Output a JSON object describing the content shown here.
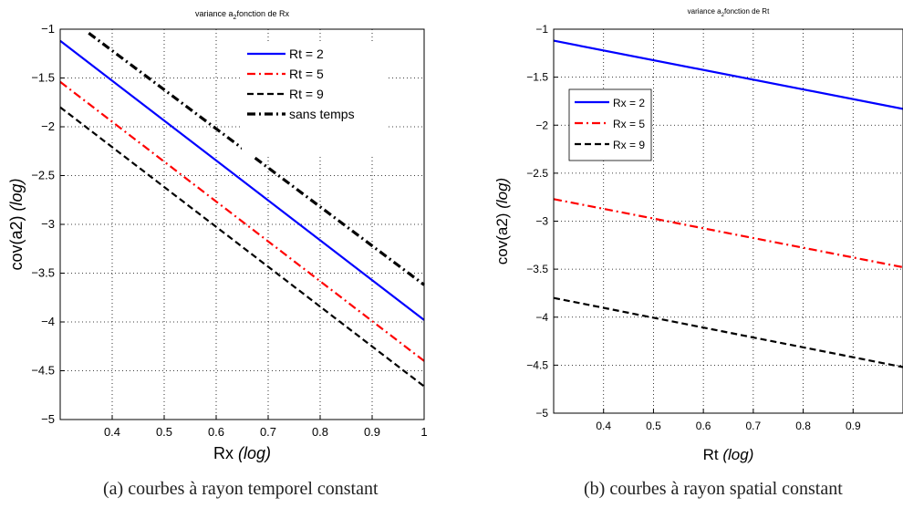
{
  "chart_data": [
    {
      "type": "line",
      "title": "variance a",
      "title_sub": "2",
      "title_rest": "fonction de Rx",
      "xlabel": "Rx",
      "xlabel_suffix": "(log)",
      "ylabel": "cov(a2)",
      "ylabel_suffix": "(log)",
      "xlim": [
        0.3,
        1
      ],
      "ylim": [
        -5,
        -1
      ],
      "xticks": [
        0.4,
        0.5,
        0.6,
        0.7,
        0.8,
        0.9,
        1
      ],
      "xtick_labels": [
        "0.4",
        "0.5",
        "0.6",
        "0.7",
        "0.8",
        "0.9",
        "1"
      ],
      "yticks": [
        -5,
        -4.5,
        -4,
        -3.5,
        -3,
        -2.5,
        -2,
        -1.5,
        -1
      ],
      "ytick_labels": [
        "−5",
        "−4.5",
        "−4",
        "−3.5",
        "−3",
        "−2.5",
        "−2",
        "−1.5",
        "−1"
      ],
      "grid": "dotted",
      "legend_position": "top-right",
      "series": [
        {
          "name": "Rt = 2",
          "color": "#0000ff",
          "style": "solid",
          "width": 2.2,
          "x": [
            0.3,
            1.0
          ],
          "y": [
            -1.12,
            -3.98
          ]
        },
        {
          "name": "Rt = 5",
          "color": "#ff0000",
          "style": "dashdot",
          "width": 2.2,
          "x": [
            0.3,
            1.0
          ],
          "y": [
            -1.54,
            -4.4
          ]
        },
        {
          "name": "Rt = 9",
          "color": "#000000",
          "style": "dashed",
          "width": 2.2,
          "x": [
            0.3,
            1.0
          ],
          "y": [
            -1.8,
            -4.66
          ]
        },
        {
          "name": "sans temps",
          "color": "#000000",
          "style": "dashdot",
          "width": 3.2,
          "x": [
            0.355,
            1.0
          ],
          "y": [
            -1.04,
            -3.62
          ]
        }
      ]
    },
    {
      "type": "line",
      "title": "variance a",
      "title_sub": "2",
      "title_rest": "fonction de Rt",
      "xlabel": "Rt",
      "xlabel_suffix": "(log)",
      "ylabel": "cov(a2)",
      "ylabel_suffix": "(log)",
      "xlim": [
        0.3,
        1
      ],
      "ylim": [
        -5,
        -1
      ],
      "xticks": [
        0.4,
        0.5,
        0.6,
        0.7,
        0.8,
        0.9
      ],
      "xtick_labels": [
        "0.4",
        "0.5",
        "0.6",
        "0.7",
        "0.8",
        "0.9"
      ],
      "yticks": [
        -5,
        -4.5,
        -4,
        -3.5,
        -3,
        -2.5,
        -2,
        -1.5,
        -1
      ],
      "ytick_labels": [
        "−5",
        "−4.5",
        "−4",
        "−3.5",
        "−3",
        "−2.5",
        "−2",
        "−1.5",
        "−1"
      ],
      "grid": "dotted",
      "legend_position": "upper-left",
      "series": [
        {
          "name": "Rx = 2",
          "color": "#0000ff",
          "style": "solid",
          "width": 2.2,
          "x": [
            0.3,
            1.0
          ],
          "y": [
            -1.12,
            -1.83
          ]
        },
        {
          "name": "Rx = 5",
          "color": "#ff0000",
          "style": "dashdot",
          "width": 2.2,
          "x": [
            0.3,
            1.0
          ],
          "y": [
            -2.77,
            -3.48
          ]
        },
        {
          "name": "Rx = 9",
          "color": "#000000",
          "style": "dashed",
          "width": 2.2,
          "x": [
            0.3,
            1.0
          ],
          "y": [
            -3.8,
            -4.52
          ]
        }
      ]
    }
  ],
  "captions": {
    "a": "(a) courbes à rayon temporel constant",
    "b": "(b) courbes à rayon spatial constant"
  }
}
